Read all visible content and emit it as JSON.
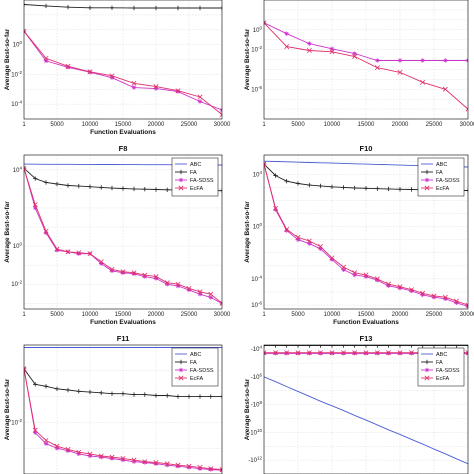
{
  "colors": {
    "ABC": "#4a5cd6",
    "FA": "#222222",
    "FA-SDSS": "#cc33cc",
    "EcFA": "#e0306a",
    "grid": "#cfcfcf"
  },
  "chart_data": [
    {
      "type": "line",
      "title": "",
      "xlabel": "Function Evaluations",
      "ylabel": "Average Best-so-far",
      "yscale": "log",
      "xlim": [
        1,
        30000
      ],
      "ylim": [
        1e-05,
        1000
      ],
      "xticks": [
        "1",
        "5000",
        "10000",
        "15000",
        "20000",
        "25000",
        "30000"
      ],
      "yticks": [
        {
          "v": 1,
          "label": "10^0"
        },
        {
          "v": 0.01,
          "label": "10^-2"
        },
        {
          "v": 0.0001,
          "label": "10^-4"
        }
      ],
      "legend": "top-right",
      "legend_entries": [],
      "x": [
        1,
        3333,
        6667,
        10000,
        13333,
        16667,
        20000,
        23333,
        26667,
        30000
      ],
      "series": [
        {
          "name": "FA",
          "values": [
            500,
            400,
            330,
            300,
            300,
            290,
            290,
            290,
            290,
            290
          ]
        },
        {
          "name": "FA-SDSS",
          "values": [
            8,
            0.08,
            0.03,
            0.014,
            0.006,
            0.0013,
            0.0011,
            0.0007,
            0.00015,
            4e-05
          ]
        },
        {
          "name": "EcFA",
          "values": [
            8,
            0.12,
            0.035,
            0.015,
            0.008,
            0.0025,
            0.0015,
            0.0008,
            0.0003,
            2e-05
          ]
        }
      ]
    },
    {
      "type": "line",
      "title": "",
      "xlabel": "",
      "ylabel": "Average Best-so-far",
      "yscale": "log",
      "xlim": [
        1,
        30000
      ],
      "ylim": [
        1e-09,
        1000
      ],
      "xticks": [
        "1",
        "5000",
        "10000",
        "15000",
        "20000",
        "25000",
        "30000"
      ],
      "yticks": [
        {
          "v": 1,
          "label": "10^0"
        },
        {
          "v": 0.01,
          "label": "10^-2"
        },
        {
          "v": 1e-06,
          "label": "10^-6"
        }
      ],
      "legend": "top-right",
      "legend_entries": [],
      "x": [
        1,
        3333,
        6667,
        10000,
        13333,
        16667,
        20000,
        23333,
        26667,
        30000
      ],
      "series": [
        {
          "name": "FA-SDSS",
          "values": [
            5,
            0.4,
            0.04,
            0.012,
            0.004,
            0.0008,
            0.0008,
            0.0008,
            0.0008,
            0.0008
          ]
        },
        {
          "name": "EcFA",
          "values": [
            5,
            0.02,
            0.008,
            0.006,
            0.002,
            0.00015,
            5e-05,
            5e-06,
            1e-06,
            1e-08
          ]
        }
      ]
    },
    {
      "type": "line",
      "title": "F8",
      "xlabel": "Function Evaluations",
      "ylabel": "Average Best-so-far",
      "yscale": "log",
      "xlim": [
        1,
        30000
      ],
      "ylim": [
        0.0005,
        60000
      ],
      "xticks": [
        "1",
        "5000",
        "10000",
        "15000",
        "20000",
        "25000",
        "30000"
      ],
      "yticks": [
        {
          "v": 10000,
          "label": "10^4"
        },
        {
          "v": 1,
          "label": "10^0"
        },
        {
          "v": 0.01,
          "label": "10^-2"
        }
      ],
      "legend": "top-right",
      "legend_entries": [
        "ABC",
        "FA",
        "FA-SDSS",
        "EcFA"
      ],
      "x": [
        1,
        1700,
        3333,
        5000,
        6667,
        8300,
        10000,
        11700,
        13333,
        15000,
        16667,
        18300,
        20000,
        21700,
        23333,
        25000,
        26667,
        28300,
        30000
      ],
      "series": [
        {
          "name": "ABC",
          "values": [
            20000,
            19800,
            19600,
            19500,
            19400,
            19300,
            19200,
            19100,
            19000,
            18900,
            18800,
            18700,
            18600,
            18500,
            18400,
            18300,
            18200,
            18100,
            18000
          ]
        },
        {
          "name": "FA",
          "values": [
            12000,
            3500,
            2200,
            1800,
            1500,
            1400,
            1300,
            1200,
            1100,
            1050,
            1000,
            960,
            930,
            900,
            880,
            860,
            840,
            820,
            800
          ]
        },
        {
          "name": "FA-SDSS",
          "values": [
            12000,
            100,
            5,
            0.6,
            0.5,
            0.4,
            0.4,
            0.12,
            0.05,
            0.04,
            0.035,
            0.025,
            0.02,
            0.01,
            0.008,
            0.005,
            0.003,
            0.002,
            0.001
          ]
        },
        {
          "name": "EcFA",
          "values": [
            12000,
            150,
            6,
            0.7,
            0.5,
            0.45,
            0.4,
            0.15,
            0.06,
            0.045,
            0.04,
            0.03,
            0.025,
            0.012,
            0.01,
            0.006,
            0.004,
            0.003,
            0.001
          ]
        }
      ]
    },
    {
      "type": "line",
      "title": "F10",
      "xlabel": "Function Evaluations",
      "ylabel": "Average Best-so-far",
      "yscale": "log",
      "xlim": [
        1,
        30000
      ],
      "ylim": [
        5e-07,
        300000
      ],
      "xticks": [
        "1",
        "5000",
        "10000",
        "15000",
        "20000",
        "25000",
        "30000"
      ],
      "yticks": [
        {
          "v": 10000,
          "label": "10^4"
        },
        {
          "v": 1,
          "label": "10^0"
        },
        {
          "v": 0.0001,
          "label": "10^-4"
        },
        {
          "v": 1e-06,
          "label": "10^-6"
        }
      ],
      "legend": "top-right",
      "legend_entries": [
        "ABC",
        "FA",
        "FA-SDSS",
        "EcFA"
      ],
      "x": [
        1,
        1700,
        3333,
        5000,
        6667,
        8300,
        10000,
        11700,
        13333,
        15000,
        16667,
        18300,
        20000,
        21700,
        23333,
        25000,
        26667,
        28300,
        30000
      ],
      "series": [
        {
          "name": "ABC",
          "values": [
            100000,
            95000,
            90000,
            85000,
            80000,
            76000,
            72000,
            68000,
            64000,
            60000,
            57000,
            54000,
            51000,
            48000,
            45000,
            42000,
            40000,
            38000,
            36000
          ]
        },
        {
          "name": "FA",
          "values": [
            60000,
            8000,
            3000,
            2000,
            1500,
            1300,
            1100,
            1000,
            900,
            850,
            800,
            760,
            720,
            690,
            660,
            640,
            620,
            600,
            580
          ]
        },
        {
          "name": "FA-SDSS",
          "values": [
            60000,
            20,
            0.5,
            0.1,
            0.05,
            0.02,
            0.003,
            0.0005,
            0.0002,
            0.00015,
            8e-05,
            3e-05,
            2e-05,
            1.2e-05,
            6e-06,
            4e-06,
            3e-06,
            1.5e-06,
            8e-07
          ]
        },
        {
          "name": "EcFA",
          "values": [
            60000,
            25,
            0.6,
            0.15,
            0.08,
            0.03,
            0.004,
            0.0008,
            0.0003,
            0.0002,
            0.0001,
            4e-05,
            2.5e-05,
            1.5e-05,
            8e-06,
            5e-06,
            4e-06,
            2e-06,
            1e-06
          ]
        }
      ]
    },
    {
      "type": "line",
      "title": "F11",
      "xlabel": "",
      "ylabel": "Average Best-so-far",
      "yscale": "log",
      "xlim": [
        1,
        30000
      ],
      "ylim": [
        0.0001,
        10
      ],
      "xticks": [],
      "yticks": [
        {
          "v": 0.01,
          "label": "10^-2"
        }
      ],
      "legend": "top-right",
      "legend_entries": [
        "ABC",
        "FA",
        "FA-SDSS",
        "EcFA"
      ],
      "x": [
        1,
        1700,
        3333,
        5000,
        6667,
        8300,
        10000,
        11700,
        13333,
        15000,
        16667,
        18300,
        20000,
        21700,
        23333,
        25000,
        26667,
        28300,
        30000
      ],
      "series": [
        {
          "name": "ABC",
          "values": [
            8,
            8,
            8,
            8,
            8,
            8,
            8,
            8,
            8,
            8,
            8,
            8,
            8,
            8,
            8,
            8,
            8,
            8,
            8
          ]
        },
        {
          "name": "FA",
          "values": [
            1.2,
            0.3,
            0.25,
            0.2,
            0.18,
            0.16,
            0.15,
            0.14,
            0.13,
            0.13,
            0.12,
            0.12,
            0.11,
            0.11,
            0.1,
            0.1,
            0.1,
            0.1,
            0.1
          ]
        },
        {
          "name": "FA-SDSS",
          "values": [
            1.2,
            0.004,
            0.0015,
            0.001,
            0.0008,
            0.0006,
            0.0005,
            0.00045,
            0.0004,
            0.00035,
            0.0003,
            0.00028,
            0.00025,
            0.00022,
            0.0002,
            0.00018,
            0.00016,
            0.00015,
            0.00014
          ]
        },
        {
          "name": "EcFA",
          "values": [
            1.2,
            0.005,
            0.002,
            0.0012,
            0.0009,
            0.0007,
            0.0006,
            0.0005,
            0.00045,
            0.0004,
            0.00035,
            0.0003,
            0.00028,
            0.00025,
            0.00022,
            0.0002,
            0.00018,
            0.00016,
            0.00015
          ]
        }
      ]
    },
    {
      "type": "line",
      "title": "F13",
      "xlabel": "",
      "ylabel": "Average Best-so-far",
      "yscale": "log",
      "yreversed": true,
      "xlim": [
        1,
        30000
      ],
      "ylim": [
        5000,
        10000000000000.0
      ],
      "xticks": [],
      "yticks": [
        {
          "v": 10000,
          "label": "-10^4"
        },
        {
          "v": 1000000,
          "label": "-10^6"
        },
        {
          "v": 100000000,
          "label": "-10^8"
        },
        {
          "v": 10000000000,
          "label": "-10^10"
        },
        {
          "v": 1000000000000,
          "label": "-10^12"
        }
      ],
      "legend": "top-right",
      "legend_entries": [
        "ABC",
        "FA",
        "FA-SDSS",
        "EcFA"
      ],
      "x": [
        1,
        1700,
        3333,
        5000,
        6667,
        8300,
        10000,
        11700,
        13333,
        15000,
        16667,
        18300,
        20000,
        21700,
        23333,
        25000,
        26667,
        28300,
        30000
      ],
      "series": [
        {
          "name": "ABC",
          "values": [
            1000000,
            2200000,
            5000000,
            11000000,
            25000000,
            56000000,
            120000000,
            270000000,
            600000000,
            1300000000,
            2900000000,
            6500000000,
            14000000000,
            32000000000,
            70000000000,
            160000000000,
            350000000000,
            800000000000,
            1800000000000
          ]
        },
        {
          "name": "FA",
          "values": [
            5500,
            5500,
            5500,
            5500,
            5500,
            5500,
            5500,
            5500,
            5500,
            5500,
            5500,
            5500,
            5500,
            5500,
            5500,
            5500,
            5500,
            5500,
            5500
          ]
        },
        {
          "name": "FA-SDSS",
          "values": [
            20000,
            20000,
            20000,
            20000,
            20000,
            20000,
            20000,
            20000,
            20000,
            20000,
            20000,
            20000,
            20000,
            20000,
            20000,
            20000,
            20000,
            20000,
            20000
          ]
        },
        {
          "name": "EcFA",
          "values": [
            18000,
            18000,
            18000,
            18000,
            18000,
            18000,
            18000,
            18000,
            18000,
            18000,
            18000,
            18000,
            18000,
            18000,
            18000,
            18000,
            18000,
            18000,
            18000
          ]
        }
      ]
    }
  ]
}
